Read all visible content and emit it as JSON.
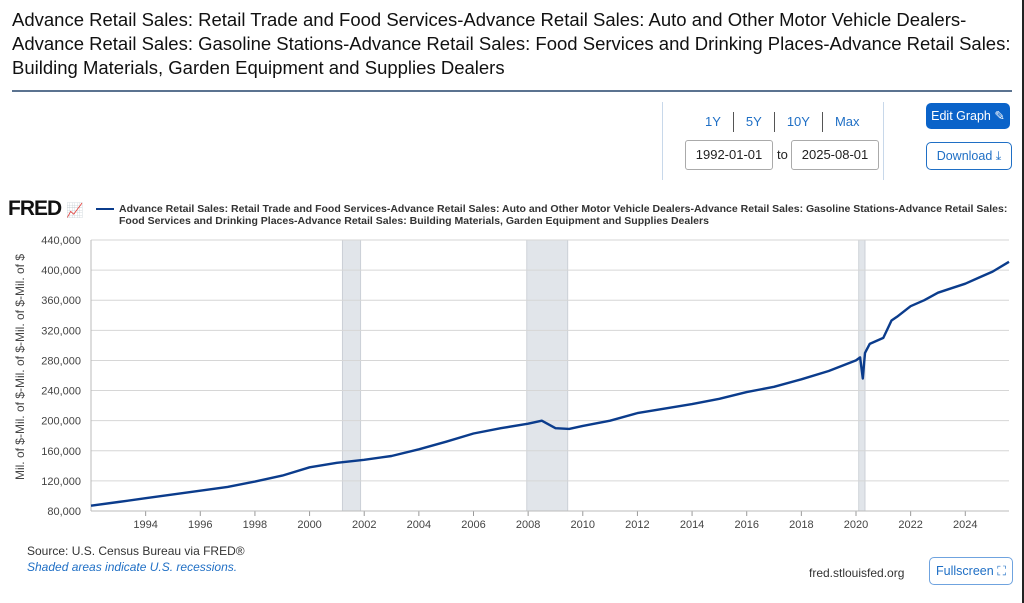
{
  "title": "Advance Retail Sales: Retail Trade and Food Services-Advance Retail Sales: Auto and Other Motor Vehicle Dealers-Advance Retail Sales: Gasoline Stations-Advance Retail Sales: Food Services and Drinking Places-Advance Retail Sales: Building Materials, Garden Equipment and Supplies Dealers",
  "controls": {
    "ranges": [
      "1Y",
      "5Y",
      "10Y",
      "Max"
    ],
    "start_date": "1992-01-01",
    "to_label": "to",
    "end_date": "2025-08-01",
    "edit_label": "Edit Graph",
    "download_label": "Download"
  },
  "logo": "FRED",
  "footer": {
    "source": "Source: U.S. Census Bureau via FRED®",
    "shaded": "Shaded areas indicate U.S. recessions.",
    "site": "fred.stlouisfed.org",
    "fullscreen": "Fullscreen"
  },
  "colors": {
    "line": "#0b3c8c",
    "recession": "#e1e5ea",
    "accent": "#0a63c9"
  },
  "chart_data": {
    "type": "line",
    "ylabel": "Mil. of $-Mil. of $-Mil. of $-Mil. of $-Mil. of $",
    "ylim": [
      80000,
      440000
    ],
    "xlim": [
      1992.0,
      2025.6
    ],
    "yticks": [
      "80,000",
      "120,000",
      "160,000",
      "200,000",
      "240,000",
      "280,000",
      "320,000",
      "360,000",
      "400,000",
      "440,000"
    ],
    "xticks": [
      "1994",
      "1996",
      "1998",
      "2000",
      "2002",
      "2004",
      "2006",
      "2008",
      "2010",
      "2012",
      "2014",
      "2016",
      "2018",
      "2020",
      "2022",
      "2024"
    ],
    "recessions": [
      [
        2001.2,
        2001.87
      ],
      [
        2007.95,
        2009.45
      ],
      [
        2020.1,
        2020.33
      ]
    ],
    "series": [
      {
        "name": "Advance Retail Sales: Retail Trade and Food Services-Advance Retail Sales: Auto and Other Motor Vehicle Dealers-Advance Retail Sales: Gasoline Stations-Advance Retail Sales: Food Services and Drinking Places-Advance Retail Sales: Building Materials, Garden Equipment and Supplies Dealers",
        "x": [
          1992,
          1993,
          1994,
          1995,
          1996,
          1997,
          1998,
          1999,
          2000,
          2001,
          2002,
          2003,
          2004,
          2005,
          2006,
          2007,
          2008,
          2008.5,
          2009,
          2009.5,
          2010,
          2011,
          2012,
          2013,
          2014,
          2015,
          2016,
          2017,
          2018,
          2019,
          2020.0,
          2020.15,
          2020.25,
          2020.33,
          2020.5,
          2021.0,
          2021.3,
          2021.5,
          2022,
          2022.5,
          2023,
          2023.5,
          2024,
          2024.5,
          2025,
          2025.6
        ],
        "y": [
          87000,
          92000,
          97000,
          102000,
          107000,
          112000,
          119000,
          127000,
          138000,
          144000,
          148000,
          153000,
          162000,
          172000,
          183000,
          190000,
          196000,
          200000,
          190000,
          189000,
          193000,
          200000,
          210000,
          216000,
          222000,
          229000,
          238000,
          245000,
          255000,
          266000,
          280000,
          284000,
          256000,
          290000,
          302000,
          310000,
          333000,
          338000,
          352000,
          360000,
          370000,
          376000,
          382000,
          390000,
          398000,
          411000
        ]
      }
    ]
  }
}
